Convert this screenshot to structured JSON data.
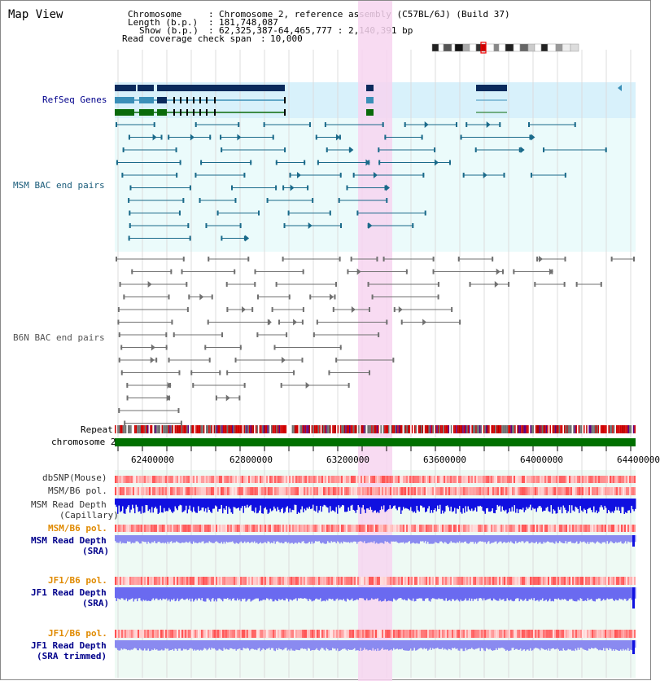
{
  "title": "Map View",
  "info": {
    "chromosome_key": "Chromosome",
    "chromosome_val": "Chromosome 2, reference assembly (C57BL/6J) (Build 37)",
    "length_key": "Length (b.p.)",
    "length_val": "181,748,087",
    "show_key": "Show (b.p.)",
    "show_val": "62,325,387-64,465,777 : 2,140,391 bp",
    "coverage_key": "Read coverage check span",
    "coverage_val": "10,000"
  },
  "tracks": {
    "refseq": "RefSeq Genes",
    "msm_bac": "MSM BAC end pairs",
    "b6n_bac": "B6N BAC end pairs",
    "repeat": "Repeat",
    "chromosome": "chromosome 2",
    "dbsnp": "dbSNP(Mouse)",
    "msm_b6_pol_1": "MSM/B6 pol.",
    "msm_depth_cap_1": "MSM Read Depth",
    "msm_depth_cap_2": "(Capillary)",
    "msm_b6_pol_2": "MSM/B6 pol.",
    "msm_depth_sra_1": "MSM Read Depth",
    "msm_depth_sra_2": "(SRA)",
    "jf1_b6_pol_1": "JF1/B6 pol.",
    "jf1_depth_sra_1": "JF1 Read Depth",
    "jf1_depth_sra_2": "(SRA)",
    "jf1_b6_pol_2": "JF1/B6 pol.",
    "jf1_depth_trim_1": "JF1 Read Depth",
    "jf1_depth_trim_2": "(SRA trimmed)"
  },
  "axis": {
    "ticks": [
      "62400000",
      "62800000",
      "63200000",
      "63600000",
      "64000000",
      "64400000"
    ]
  },
  "colors": {
    "refseq_bg": "#d8f1fb",
    "msm_bg": "#ebfbfb",
    "gene_dark": "#0a2a5c",
    "gene_mid": "#3a8fb8",
    "gene_green": "#0a6a0a",
    "msm_pair": "#1a6a8a",
    "b6n_pair": "#707070",
    "highlight": "#f7d5f0",
    "chromosome": "#007000",
    "depth_blue": "#1010e0",
    "depth_light": "#8a8af0",
    "label_blue": "#00008b",
    "label_orange": "#e08a00"
  }
}
